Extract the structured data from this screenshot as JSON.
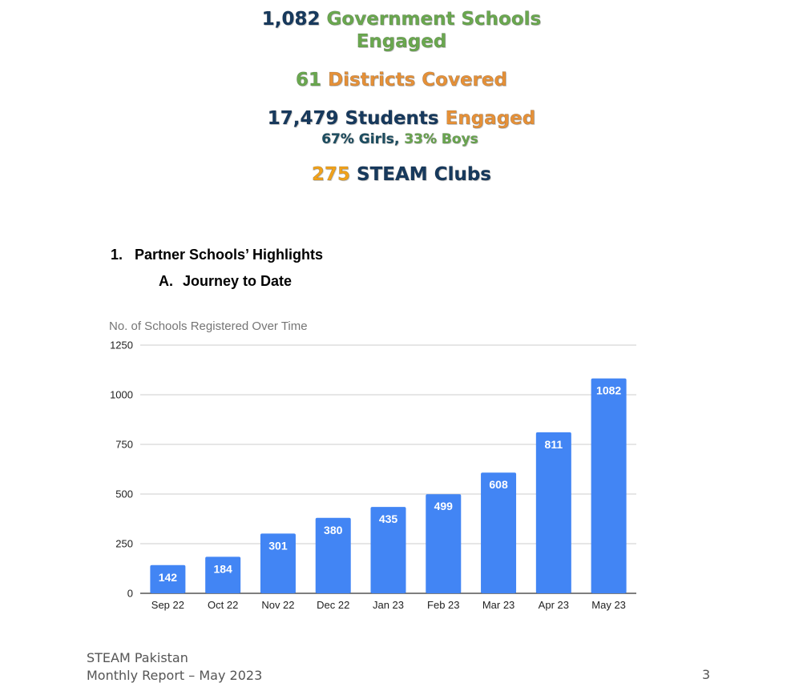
{
  "highlights": {
    "schools": {
      "number": "1,082",
      "text_line1": "Government Schools",
      "text_line2": "Engaged"
    },
    "districts": {
      "number": "61",
      "text": "Districts Covered"
    },
    "students": {
      "number": "17,479",
      "word": "Students",
      "word2": "Engaged"
    },
    "gender": {
      "girls": "67% Girls",
      "sep": ",",
      "boys": "33% Boys"
    },
    "clubs": {
      "number": "275",
      "text": "STEAM Clubs"
    }
  },
  "section": {
    "h1_number": "1.",
    "h1_title": "Partner Schools’ Highlights",
    "h2_letter": "A.",
    "h2_title": "Journey to Date"
  },
  "chart_data": {
    "type": "bar",
    "title": "No. of Schools Registered Over Time",
    "categories": [
      "Sep 22",
      "Oct 22",
      "Nov 22",
      "Dec 22",
      "Jan 23",
      "Feb 23",
      "Mar 23",
      "Apr 23",
      "May 23"
    ],
    "values": [
      142,
      184,
      301,
      380,
      435,
      499,
      608,
      811,
      1082
    ],
    "yticks": [
      0,
      250,
      500,
      750,
      1000,
      1250
    ],
    "ylim": [
      0,
      1250
    ],
    "xlabel": "",
    "ylabel": "",
    "grid": true,
    "legend": "none",
    "bar_color": "#4285f4",
    "label_color": "#ffffff"
  },
  "footer": {
    "org": "STEAM Pakistan",
    "report": "Monthly Report – May 2023",
    "page": "3"
  }
}
